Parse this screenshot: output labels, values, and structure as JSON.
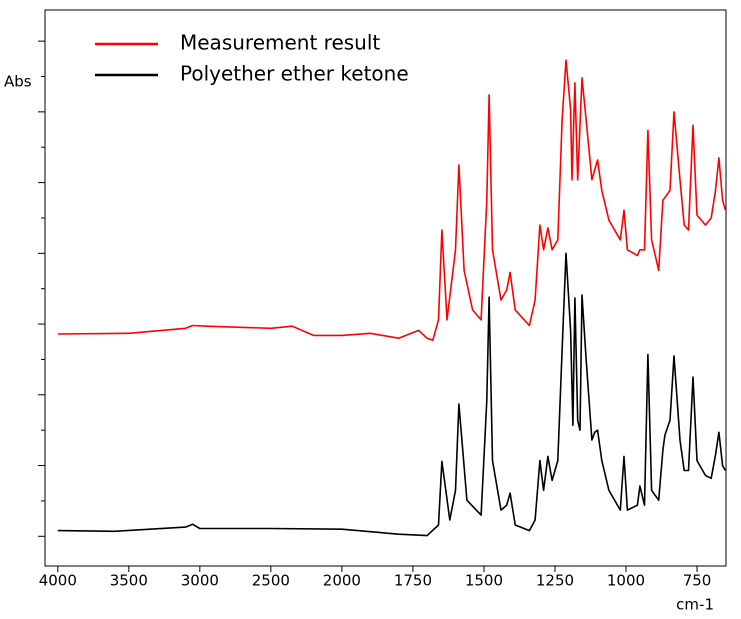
{
  "chart_data": {
    "type": "line",
    "y_label": "Abs",
    "x_label": "cm-1",
    "xlim": [
      4090,
      648
    ],
    "x_scale_change": {
      "at": 2000,
      "ratio": 2
    },
    "xticks": [
      4000,
      3500,
      3000,
      2500,
      2000,
      1750,
      1500,
      1250,
      1000,
      750
    ],
    "ylim": [
      -0.42,
      7.44
    ],
    "yticks": [
      0,
      1,
      2,
      3,
      4,
      5,
      6,
      7
    ],
    "yminorticks": [
      0.5,
      1.5,
      2.5,
      3.5,
      4.5,
      5.5,
      6.5
    ],
    "legend": "upper left",
    "series": [
      {
        "name": "Measurement result",
        "color": "#ff0000",
        "x": [
          4000,
          3500,
          3100,
          3050,
          2950,
          2500,
          2350,
          2200,
          2000,
          1900,
          1800,
          1730,
          1700,
          1680,
          1660,
          1648,
          1630,
          1600,
          1588,
          1570,
          1540,
          1510,
          1490,
          1482,
          1470,
          1440,
          1420,
          1408,
          1390,
          1340,
          1320,
          1303,
          1290,
          1275,
          1260,
          1240,
          1225,
          1211,
          1195,
          1190,
          1180,
          1170,
          1155,
          1140,
          1120,
          1110,
          1100,
          1085,
          1060,
          1020,
          1007,
          995,
          960,
          951,
          935,
          923,
          910,
          885,
          870,
          845,
          831,
          810,
          795,
          780,
          764,
          750,
          720,
          700,
          685,
          673,
          660,
          650
        ],
        "values": [
          2.86,
          2.87,
          2.94,
          2.98,
          2.97,
          2.94,
          2.97,
          2.84,
          2.84,
          2.87,
          2.8,
          2.91,
          2.8,
          2.77,
          3.06,
          4.33,
          3.06,
          4.05,
          5.25,
          3.76,
          3.2,
          3.06,
          4.75,
          6.24,
          4.05,
          3.34,
          3.48,
          3.73,
          3.2,
          2.98,
          3.34,
          4.4,
          4.05,
          4.36,
          4.05,
          4.19,
          5.88,
          6.73,
          6.03,
          5.04,
          6.41,
          5.04,
          6.48,
          5.88,
          5.04,
          5.18,
          5.32,
          4.89,
          4.47,
          4.19,
          4.61,
          4.05,
          3.97,
          4.05,
          4.05,
          5.74,
          4.19,
          3.76,
          4.75,
          4.89,
          6.0,
          5.04,
          4.4,
          4.33,
          5.81,
          4.54,
          4.4,
          4.5,
          4.89,
          5.35,
          4.75,
          4.61
        ]
      },
      {
        "name": "Polyether ether ketone",
        "color": "#000000",
        "x": [
          4000,
          3600,
          3100,
          3050,
          3000,
          2500,
          2000,
          1800,
          1700,
          1660,
          1648,
          1620,
          1600,
          1588,
          1560,
          1510,
          1490,
          1482,
          1470,
          1440,
          1420,
          1408,
          1390,
          1340,
          1320,
          1303,
          1290,
          1275,
          1260,
          1240,
          1225,
          1211,
          1195,
          1187,
          1180,
          1170,
          1162,
          1155,
          1140,
          1120,
          1110,
          1100,
          1085,
          1060,
          1020,
          1007,
          995,
          960,
          951,
          935,
          923,
          910,
          885,
          870,
          863,
          845,
          831,
          810,
          795,
          780,
          764,
          750,
          720,
          700,
          685,
          673,
          660,
          650
        ],
        "values": [
          0.08,
          0.07,
          0.13,
          0.17,
          0.11,
          0.11,
          0.1,
          0.03,
          0.01,
          0.16,
          1.06,
          0.23,
          0.65,
          1.87,
          0.51,
          0.3,
          1.92,
          3.38,
          1.07,
          0.37,
          0.44,
          0.61,
          0.16,
          0.08,
          0.23,
          1.07,
          0.65,
          1.13,
          0.79,
          1.07,
          2.63,
          4.0,
          2.91,
          1.57,
          3.37,
          1.64,
          1.5,
          3.41,
          2.49,
          1.36,
          1.47,
          1.5,
          1.07,
          0.65,
          0.37,
          1.13,
          0.37,
          0.44,
          0.71,
          0.44,
          2.57,
          0.65,
          0.51,
          1.22,
          1.43,
          1.64,
          2.55,
          1.36,
          0.93,
          0.93,
          2.25,
          1.07,
          0.86,
          0.82,
          1.15,
          1.47,
          1.0,
          0.93
        ]
      }
    ]
  }
}
